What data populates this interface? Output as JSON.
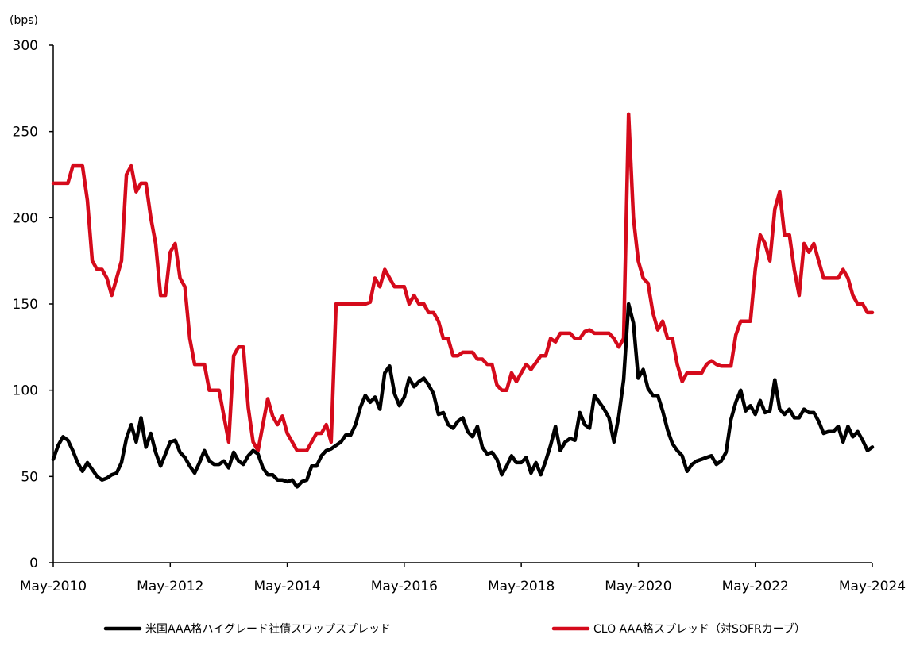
{
  "chart_data": {
    "type": "line",
    "title": "",
    "xlabel": "",
    "ylabel": "",
    "unit": "(bps)",
    "ylim": [
      0,
      300
    ],
    "yticks": [
      "0",
      "50",
      "100",
      "150",
      "200",
      "250",
      "300"
    ],
    "xlim": [
      2010.333,
      2024.333
    ],
    "xticks": [
      {
        "label": "May-2010",
        "x": 2010.333
      },
      {
        "label": "May-2012",
        "x": 2012.333
      },
      {
        "label": "May-2014",
        "x": 2014.333
      },
      {
        "label": "May-2016",
        "x": 2016.333
      },
      {
        "label": "May-2018",
        "x": 2018.333
      },
      {
        "label": "May-2020",
        "x": 2020.333
      },
      {
        "label": "May-2022",
        "x": 2022.333
      },
      {
        "label": "May-2024",
        "x": 2024.333
      }
    ],
    "grid": false,
    "legend_position": "bottom",
    "series": [
      {
        "name": "米国AAA格ハイグレード社債スワップスプレッド",
        "color": "#000000",
        "x": [
          2010.333,
          2010.417,
          2010.5,
          2010.583,
          2010.667,
          2010.75,
          2010.833,
          2010.917,
          2011.0,
          2011.083,
          2011.167,
          2011.25,
          2011.333,
          2011.417,
          2011.5,
          2011.583,
          2011.667,
          2011.75,
          2011.833,
          2011.917,
          2012.0,
          2012.083,
          2012.167,
          2012.25,
          2012.333,
          2012.417,
          2012.5,
          2012.583,
          2012.667,
          2012.75,
          2012.833,
          2012.917,
          2013.0,
          2013.083,
          2013.167,
          2013.25,
          2013.333,
          2013.417,
          2013.5,
          2013.583,
          2013.667,
          2013.75,
          2013.833,
          2013.917,
          2014.0,
          2014.083,
          2014.167,
          2014.25,
          2014.333,
          2014.417,
          2014.5,
          2014.583,
          2014.667,
          2014.75,
          2014.833,
          2014.917,
          2015.0,
          2015.083,
          2015.167,
          2015.25,
          2015.333,
          2015.417,
          2015.5,
          2015.583,
          2015.667,
          2015.75,
          2015.833,
          2015.917,
          2016.0,
          2016.083,
          2016.167,
          2016.25,
          2016.333,
          2016.417,
          2016.5,
          2016.583,
          2016.667,
          2016.75,
          2016.833,
          2016.917,
          2017.0,
          2017.083,
          2017.167,
          2017.25,
          2017.333,
          2017.417,
          2017.5,
          2017.583,
          2017.667,
          2017.75,
          2017.833,
          2017.917,
          2018.0,
          2018.083,
          2018.167,
          2018.25,
          2018.333,
          2018.417,
          2018.5,
          2018.583,
          2018.667,
          2018.75,
          2018.833,
          2018.917,
          2019.0,
          2019.083,
          2019.167,
          2019.25,
          2019.333,
          2019.417,
          2019.5,
          2019.583,
          2019.667,
          2019.75,
          2019.833,
          2019.917,
          2020.0,
          2020.083,
          2020.167,
          2020.25,
          2020.333,
          2020.417,
          2020.5,
          2020.583,
          2020.667,
          2020.75,
          2020.833,
          2020.917,
          2021.0,
          2021.083,
          2021.167,
          2021.25,
          2021.333,
          2021.417,
          2021.5,
          2021.583,
          2021.667,
          2021.75,
          2021.833,
          2021.917,
          2022.0,
          2022.083,
          2022.167,
          2022.25,
          2022.333,
          2022.417,
          2022.5,
          2022.583,
          2022.667,
          2022.75,
          2022.833,
          2022.917,
          2023.0,
          2023.083,
          2023.167,
          2023.25,
          2023.333,
          2023.417,
          2023.5,
          2023.583,
          2023.667,
          2023.75,
          2023.833,
          2023.917,
          2024.0,
          2024.083,
          2024.167,
          2024.25,
          2024.333
        ],
        "values": [
          60,
          68,
          73,
          71,
          65,
          58,
          53,
          58,
          54,
          50,
          48,
          49,
          51,
          52,
          58,
          72,
          80,
          70,
          84,
          67,
          75,
          64,
          56,
          63,
          70,
          71,
          64,
          61,
          56,
          52,
          58,
          65,
          59,
          57,
          57,
          59,
          55,
          64,
          59,
          57,
          62,
          65,
          63,
          55,
          51,
          51,
          48,
          48,
          47,
          48,
          44,
          47,
          48,
          56,
          56,
          62,
          65,
          66,
          68,
          70,
          74,
          74,
          80,
          90,
          97,
          93,
          96,
          89,
          110,
          114,
          98,
          91,
          96,
          107,
          102,
          105,
          107,
          103,
          98,
          86,
          87,
          80,
          78,
          82,
          84,
          76,
          73,
          79,
          67,
          63,
          64,
          60,
          51,
          56,
          62,
          58,
          58,
          61,
          52,
          58,
          51,
          59,
          68,
          79,
          65,
          70,
          72,
          71,
          87,
          80,
          78,
          97,
          93,
          89,
          84,
          70,
          85,
          106,
          150,
          139,
          107,
          112,
          101,
          97,
          97,
          88,
          77,
          69,
          65,
          62,
          53,
          57,
          59,
          60,
          61,
          62,
          57,
          59,
          64,
          83,
          93,
          100,
          88,
          91,
          86,
          94,
          87,
          88,
          106,
          89,
          86,
          89,
          84,
          84,
          89,
          87,
          87,
          82,
          75,
          76,
          76,
          79,
          70,
          79,
          73,
          76,
          71,
          65,
          67
        ]
      },
      {
        "name": "CLO AAA格スプレッド（対SOFRカーブ）",
        "color": "#d50a1b",
        "x": [
          2010.333,
          2010.417,
          2010.5,
          2010.583,
          2010.667,
          2010.75,
          2010.833,
          2010.917,
          2011.0,
          2011.083,
          2011.167,
          2011.25,
          2011.333,
          2011.417,
          2011.5,
          2011.583,
          2011.667,
          2011.75,
          2011.833,
          2011.917,
          2012.0,
          2012.083,
          2012.167,
          2012.25,
          2012.333,
          2012.417,
          2012.5,
          2012.583,
          2012.667,
          2012.75,
          2012.833,
          2012.917,
          2013.0,
          2013.083,
          2013.167,
          2013.25,
          2013.333,
          2013.417,
          2013.5,
          2013.583,
          2013.667,
          2013.75,
          2013.833,
          2013.917,
          2014.0,
          2014.083,
          2014.167,
          2014.25,
          2014.333,
          2014.417,
          2014.5,
          2014.583,
          2014.667,
          2014.75,
          2014.833,
          2014.917,
          2015.0,
          2015.083,
          2015.167,
          2015.25,
          2015.333,
          2015.417,
          2015.5,
          2015.583,
          2015.667,
          2015.75,
          2015.833,
          2015.917,
          2016.0,
          2016.083,
          2016.167,
          2016.25,
          2016.333,
          2016.417,
          2016.5,
          2016.583,
          2016.667,
          2016.75,
          2016.833,
          2016.917,
          2017.0,
          2017.083,
          2017.167,
          2017.25,
          2017.333,
          2017.417,
          2017.5,
          2017.583,
          2017.667,
          2017.75,
          2017.833,
          2017.917,
          2018.0,
          2018.083,
          2018.167,
          2018.25,
          2018.333,
          2018.417,
          2018.5,
          2018.583,
          2018.667,
          2018.75,
          2018.833,
          2018.917,
          2019.0,
          2019.083,
          2019.167,
          2019.25,
          2019.333,
          2019.417,
          2019.5,
          2019.583,
          2019.667,
          2019.75,
          2019.833,
          2019.917,
          2020.0,
          2020.083,
          2020.167,
          2020.25,
          2020.333,
          2020.417,
          2020.5,
          2020.583,
          2020.667,
          2020.75,
          2020.833,
          2020.917,
          2021.0,
          2021.083,
          2021.167,
          2021.25,
          2021.333,
          2021.417,
          2021.5,
          2021.583,
          2021.667,
          2021.75,
          2021.833,
          2021.917,
          2022.0,
          2022.083,
          2022.167,
          2022.25,
          2022.333,
          2022.417,
          2022.5,
          2022.583,
          2022.667,
          2022.75,
          2022.833,
          2022.917,
          2023.0,
          2023.083,
          2023.167,
          2023.25,
          2023.333,
          2023.417,
          2023.5,
          2023.583,
          2023.667,
          2023.75,
          2023.833,
          2023.917,
          2024.0,
          2024.083,
          2024.167,
          2024.25,
          2024.333
        ],
        "values": [
          220,
          220,
          220,
          220,
          230,
          230,
          230,
          210,
          175,
          170,
          170,
          165,
          155,
          165,
          175,
          225,
          230,
          215,
          220,
          220,
          200,
          185,
          155,
          155,
          180,
          185,
          165,
          160,
          130,
          115,
          115,
          115,
          100,
          100,
          100,
          85,
          70,
          120,
          125,
          125,
          90,
          70,
          65,
          80,
          95,
          85,
          80,
          85,
          75,
          70,
          65,
          65,
          65,
          70,
          75,
          75,
          80,
          70,
          150,
          150,
          150,
          150,
          150,
          150,
          150,
          151,
          165,
          160,
          170,
          165,
          160,
          160,
          160,
          150,
          155,
          150,
          150,
          145,
          145,
          140,
          130,
          130,
          120,
          120,
          122,
          122,
          122,
          118,
          118,
          115,
          115,
          103,
          100,
          100,
          110,
          105,
          110,
          115,
          112,
          116,
          120,
          120,
          130,
          128,
          133,
          133,
          133,
          130,
          130,
          134,
          135,
          133,
          133,
          133,
          133,
          130,
          125,
          130,
          260,
          200,
          175,
          165,
          162,
          145,
          135,
          140,
          130,
          130,
          115,
          105,
          110,
          110,
          110,
          110,
          115,
          117,
          115,
          114,
          114,
          114,
          132,
          140,
          140,
          140,
          170,
          190,
          185,
          175,
          205,
          215,
          190,
          190,
          170,
          155,
          185,
          180,
          185,
          175,
          165,
          165,
          165,
          165,
          170,
          165,
          155,
          150,
          150,
          145,
          145
        ]
      }
    ]
  }
}
